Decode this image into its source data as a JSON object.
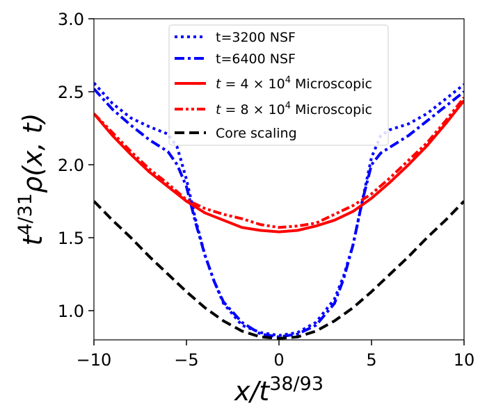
{
  "chart_data": {
    "type": "line",
    "title": "",
    "xlabel": {
      "base": "x/t",
      "exp": "38/93"
    },
    "ylabel": {
      "pre": "t",
      "exp": "4/31",
      "post": "ρ(x, t)"
    },
    "xlim": [
      -10,
      10
    ],
    "ylim": [
      0.8,
      3.0
    ],
    "xticks": [
      -10,
      -5,
      0,
      5,
      10
    ],
    "xtick_labels": [
      "−10",
      "−5",
      "0",
      "5",
      "10"
    ],
    "yticks": [
      1.0,
      1.5,
      2.0,
      2.5,
      3.0
    ],
    "ytick_labels": [
      "1.0",
      "1.5",
      "2.0",
      "2.5",
      "3.0"
    ],
    "grid": false,
    "legend_position": "top-center",
    "series": [
      {
        "name": "t=3200 NSF",
        "legend": {
          "text": "t=3200 NSF"
        },
        "color": "#0000ff",
        "style": "dotted",
        "x": [
          -10,
          -9,
          -8,
          -7,
          -6,
          -5.5,
          -5,
          -4.5,
          -4,
          -3.5,
          -3,
          -2,
          -1,
          0,
          1,
          2,
          3,
          3.5,
          4,
          4.5,
          5,
          5.5,
          6,
          7,
          8,
          9,
          10
        ],
        "y": [
          2.56,
          2.42,
          2.32,
          2.26,
          2.21,
          2.12,
          1.9,
          1.62,
          1.38,
          1.2,
          1.05,
          0.9,
          0.85,
          0.83,
          0.85,
          0.92,
          1.08,
          1.24,
          1.45,
          1.75,
          2.05,
          2.2,
          2.24,
          2.28,
          2.35,
          2.45,
          2.55
        ]
      },
      {
        "name": "t=6400 NSF",
        "legend": {
          "text": "t=6400 NSF"
        },
        "color": "#0000ff",
        "style": "dashdot",
        "x": [
          -10,
          -9,
          -8,
          -7,
          -6,
          -5.5,
          -5,
          -4.5,
          -4,
          -3.5,
          -3,
          -2,
          -1,
          0,
          1,
          2,
          3,
          3.5,
          4,
          4.5,
          5,
          5.5,
          6,
          7,
          8,
          9,
          10
        ],
        "y": [
          2.52,
          2.38,
          2.27,
          2.17,
          2.09,
          2.0,
          1.85,
          1.6,
          1.38,
          1.2,
          1.06,
          0.92,
          0.84,
          0.82,
          0.84,
          0.9,
          1.05,
          1.22,
          1.45,
          1.75,
          2.0,
          2.08,
          2.12,
          2.2,
          2.3,
          2.4,
          2.5
        ]
      },
      {
        "name": "t = 4 × 10^4 Microscopic",
        "legend": {
          "pre": "t",
          "mid": " = 4 × 10",
          "sup": "4",
          "post": " Microscopic"
        },
        "color": "#ff0000",
        "style": "solid",
        "x": [
          -10,
          -9,
          -8,
          -7,
          -6,
          -5,
          -4,
          -3,
          -2,
          -1,
          0,
          1,
          2,
          3,
          4,
          5,
          6,
          7,
          8,
          9,
          10
        ],
        "y": [
          2.35,
          2.2,
          2.07,
          1.95,
          1.85,
          1.75,
          1.67,
          1.62,
          1.57,
          1.55,
          1.54,
          1.55,
          1.58,
          1.62,
          1.68,
          1.77,
          1.88,
          2.0,
          2.13,
          2.28,
          2.44
        ]
      },
      {
        "name": "t = 8 × 10^4 Microscopic",
        "legend": {
          "pre": "t",
          "mid": " = 8 × 10",
          "sup": "4",
          "post": " Microscopic"
        },
        "color": "#ff0000",
        "style": "dashdotdot",
        "x": [
          -10,
          -9,
          -8,
          -7,
          -6,
          -5,
          -4,
          -3,
          -2,
          -1,
          0,
          1,
          2,
          3,
          4,
          5,
          6,
          7,
          8,
          9,
          10
        ],
        "y": [
          2.35,
          2.22,
          2.09,
          1.97,
          1.87,
          1.76,
          1.7,
          1.66,
          1.63,
          1.59,
          1.57,
          1.58,
          1.6,
          1.66,
          1.72,
          1.8,
          1.91,
          2.03,
          2.15,
          2.3,
          2.46
        ]
      },
      {
        "name": "Core scaling",
        "legend": {
          "text": "Core scaling"
        },
        "color": "#000000",
        "style": "dashed",
        "x": [
          -10,
          -9,
          -8,
          -7,
          -6,
          -5,
          -4,
          -3,
          -2,
          -1,
          0,
          1,
          2,
          3,
          4,
          5,
          6,
          7,
          8,
          9,
          10
        ],
        "y": [
          1.75,
          1.62,
          1.5,
          1.37,
          1.25,
          1.13,
          1.02,
          0.93,
          0.86,
          0.82,
          0.81,
          0.82,
          0.86,
          0.93,
          1.02,
          1.13,
          1.25,
          1.37,
          1.5,
          1.62,
          1.75
        ]
      }
    ]
  }
}
